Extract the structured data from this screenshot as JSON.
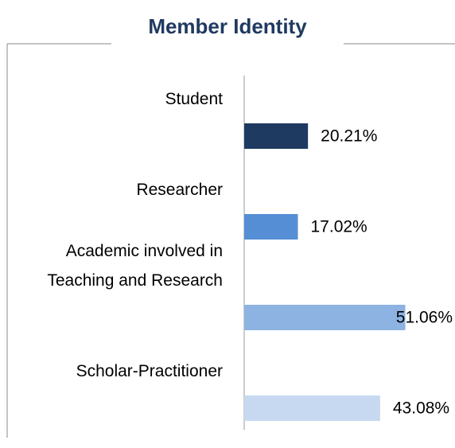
{
  "chart_data": {
    "type": "bar",
    "orientation": "horizontal",
    "title": "Member Identity",
    "categories": [
      "Student",
      "Researcher",
      "Academic involved in Teaching and Research",
      "Scholar-Practitioner"
    ],
    "values": [
      20.21,
      17.02,
      51.06,
      43.08
    ],
    "value_labels": [
      "20.21%",
      "17.02%",
      "51.06%",
      "43.08%"
    ],
    "colors": [
      "#1f3a60",
      "#558ed5",
      "#8db3e2",
      "#c6d9f1"
    ],
    "xlim": [
      0,
      60
    ]
  }
}
